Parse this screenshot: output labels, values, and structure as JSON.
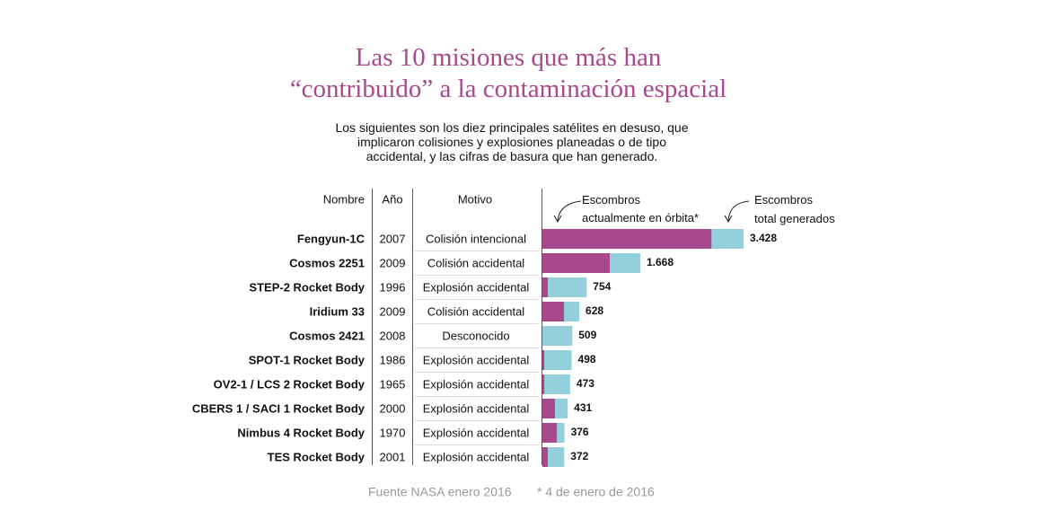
{
  "chart_data": {
    "type": "bar",
    "title": "Las 10 misiones que más han “contribuido” a la contaminación espacial",
    "subtitle": "Los siguientes son los diez principales satélites en desuso, que implicaron colisiones y explosiones planeadas o de tipo accidental, y las cifras de basura que han generado.",
    "column_headers": [
      "Nombre",
      "Año",
      "Motivo"
    ],
    "categories": [
      "Fengyun-1C",
      "Cosmos 2251",
      "STEP-2 Rocket Body",
      "Iridium 33",
      "Cosmos 2421",
      "SPOT-1 Rocket Body",
      "OV2-1 / LCS 2 Rocket Body",
      "CBERS 1 / SACI 1 Rocket Body",
      "Nimbus 4 Rocket Body",
      "TES Rocket Body"
    ],
    "years": [
      "2007",
      "2009",
      "1996",
      "2009",
      "2008",
      "1986",
      "1965",
      "2000",
      "1970",
      "2001"
    ],
    "motives": [
      "Colisión intencional",
      "Colisión accidental",
      "Explosión accidental",
      "Colisión accidental",
      "Desconocido",
      "Explosión accidental",
      "Explosión accidental",
      "Explosión accidental",
      "Explosión accidental",
      "Explosión accidental"
    ],
    "series": [
      {
        "name": "Escombros total generados",
        "color": "#93d0dc",
        "values": [
          3428,
          1668,
          754,
          628,
          509,
          498,
          473,
          431,
          376,
          372
        ],
        "value_labels": [
          "3.428",
          "1.668",
          "754",
          "628",
          "509",
          "498",
          "473",
          "431",
          "376",
          "372"
        ]
      },
      {
        "name": "Escombros actualmente en órbita*",
        "color": "#a8488e",
        "values": [
          2880,
          1148,
          92,
          367,
          0,
          31,
          31,
          214,
          245,
          92
        ]
      }
    ],
    "footer": [
      "Fuente NASA enero 2016",
      "* 4 de enero de 2016"
    ]
  }
}
